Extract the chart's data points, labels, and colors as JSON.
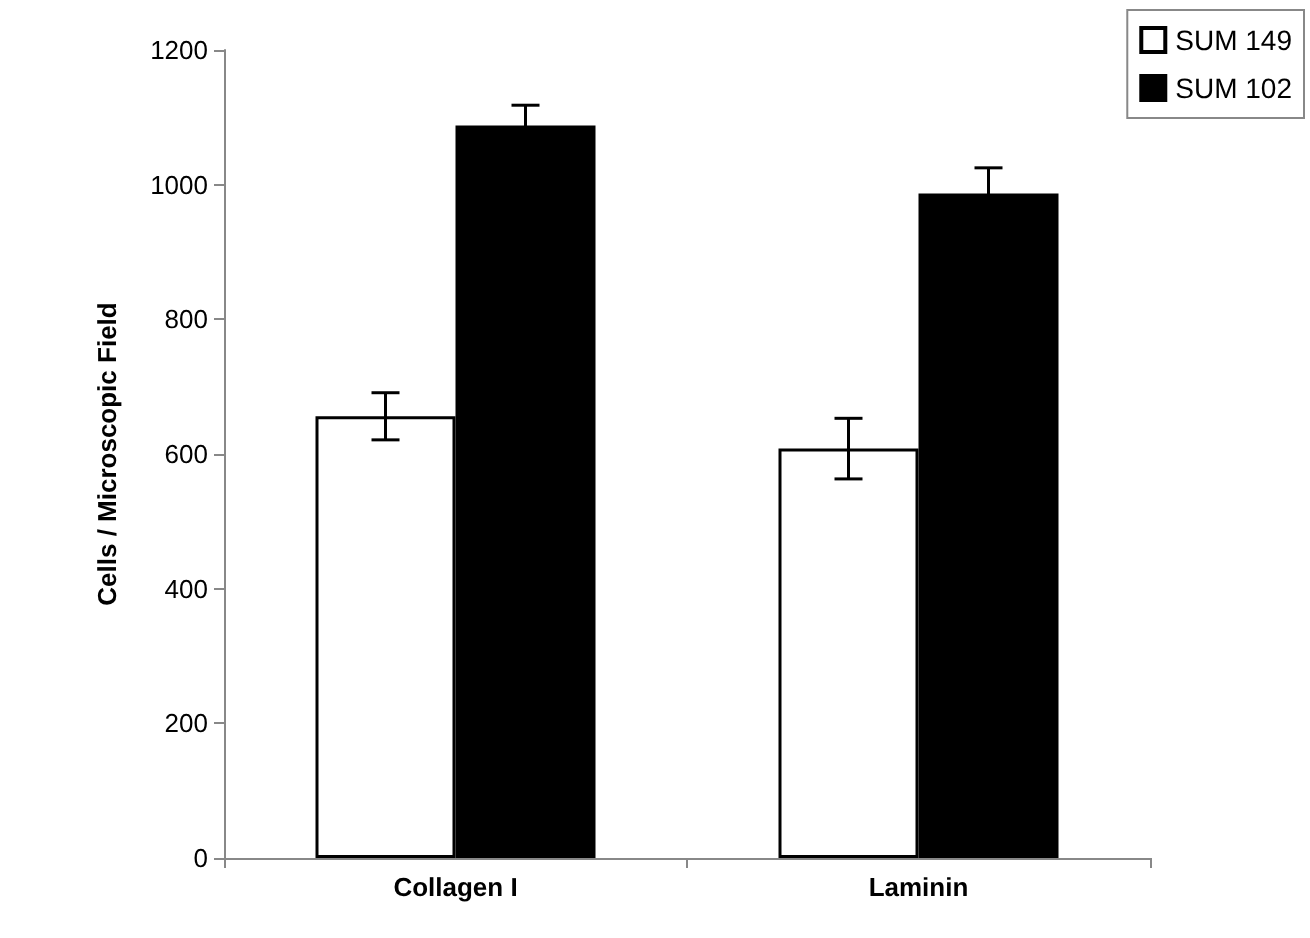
{
  "chart_data": {
    "type": "bar",
    "ylabel": "Cells / Microscopic Field",
    "categories": [
      "Collagen I",
      "Laminin"
    ],
    "series": [
      {
        "name": "SUM 149",
        "color": "#ffffff",
        "values": [
          656,
          608
        ],
        "errors": [
          35,
          45
        ]
      },
      {
        "name": "SUM 102",
        "color": "#000000",
        "values": [
          1088,
          987
        ],
        "errors": [
          30,
          38
        ]
      }
    ],
    "ylim": [
      0,
      1200
    ],
    "yticks": [
      0,
      200,
      400,
      600,
      800,
      1000,
      1200
    ],
    "grid": false,
    "legend": "top right"
  }
}
